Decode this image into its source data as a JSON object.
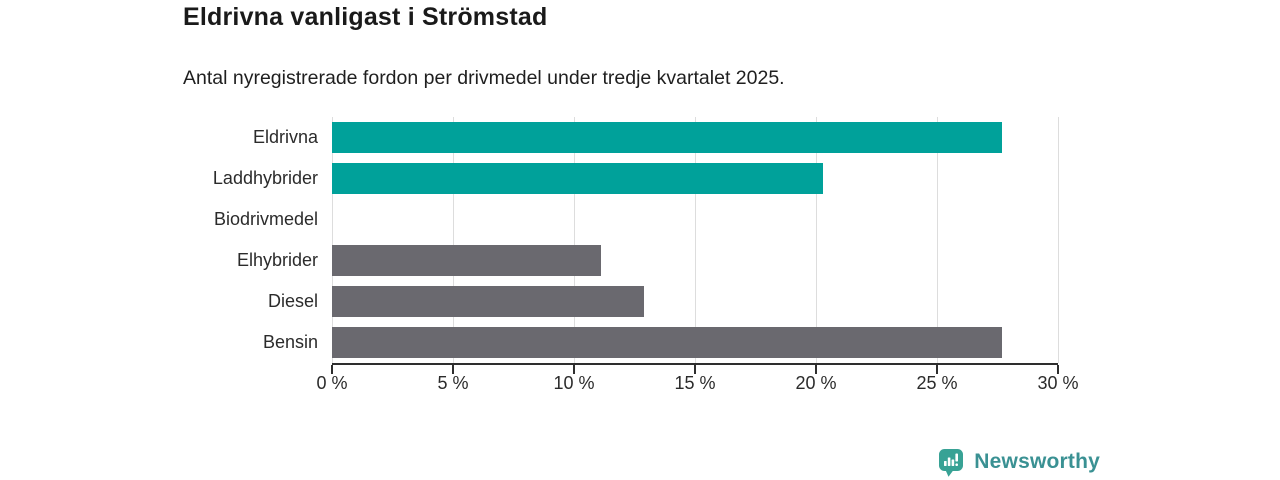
{
  "chart_data": {
    "type": "bar",
    "orientation": "horizontal",
    "title": "Eldrivna vanligast i Strömstad",
    "subtitle": "Antal nyregistrerade fordon per drivmedel under tredje kvartalet 2025.",
    "categories": [
      "Eldrivna",
      "Laddhybrider",
      "Biodrivmedel",
      "Elhybrider",
      "Diesel",
      "Bensin"
    ],
    "values": [
      27.7,
      20.3,
      0,
      11.1,
      12.9,
      27.7
    ],
    "bar_colors": [
      "#00a19a",
      "#00a19a",
      "#6a696f",
      "#6a696f",
      "#6a696f",
      "#6a696f"
    ],
    "xlabel": "",
    "ylabel": "",
    "xlim": [
      0,
      30
    ],
    "x_ticks": [
      0,
      5,
      10,
      15,
      20,
      25,
      30
    ],
    "x_tick_labels": [
      "0 %",
      "5 %",
      "10 %",
      "15 %",
      "20 %",
      "25 %",
      "30 %"
    ],
    "grid": "vertical",
    "legend": "none",
    "accent_color": "#00a19a",
    "muted_color": "#6a696f",
    "gridline_color": "#dddddd",
    "axis_color": "#2e2e2e"
  },
  "footer": {
    "brand": "Newsworthy",
    "brand_color": "#3a9193",
    "badge_color": "#38a295",
    "badge_icon": "bar-chart-exclamation-pin-icon"
  }
}
